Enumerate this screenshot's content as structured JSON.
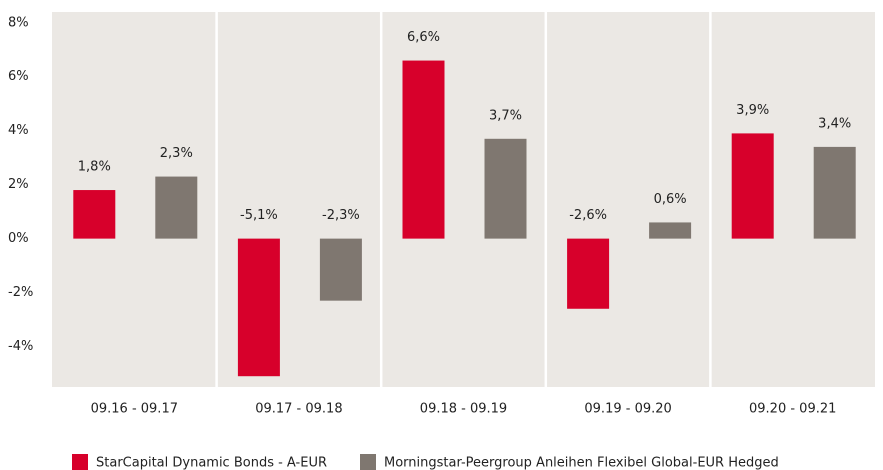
{
  "chart_data": {
    "type": "bar",
    "categories": [
      "09.16 - 09.17",
      "09.17 - 09.18",
      "09.18 - 09.19",
      "09.19 - 09.20",
      "09.20 - 09.21"
    ],
    "series": [
      {
        "name": "StarCapital Dynamic Bonds - A-EUR",
        "color": "#d7002b",
        "values": [
          1.8,
          -5.1,
          6.6,
          -2.6,
          3.9
        ],
        "value_labels": [
          "1,8%",
          "-5,1%",
          "6,6%",
          "-2,6%",
          "3,9%"
        ]
      },
      {
        "name": "Morningstar-Peergroup Anleihen Flexibel Global-EUR Hedged",
        "color": "#7f7770",
        "values": [
          2.3,
          -2.3,
          3.7,
          0.6,
          3.4
        ],
        "value_labels": [
          "2,3%",
          "-2,3%",
          "3,7%",
          "0,6%",
          "3,4%"
        ]
      }
    ],
    "ylim": [
      -5.5,
      8.4
    ],
    "yticks": [
      {
        "value": -4,
        "label": "-4%"
      },
      {
        "value": -2,
        "label": "-2%"
      },
      {
        "value": 0,
        "label": "0%"
      },
      {
        "value": 2,
        "label": "2%"
      },
      {
        "value": 4,
        "label": "4%"
      },
      {
        "value": 6,
        "label": "6%"
      },
      {
        "value": 8,
        "label": "8%"
      }
    ],
    "background": "#ebe8e4"
  }
}
